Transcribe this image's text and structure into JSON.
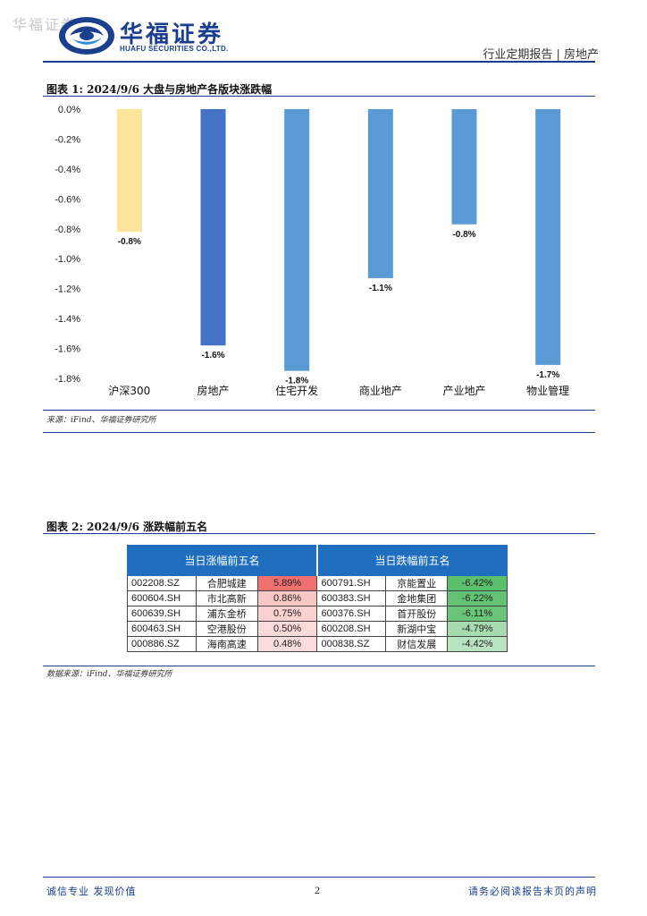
{
  "header": {
    "watermark": "华福证券",
    "logo_cn": "华福证券",
    "logo_en": "HUAFU SECURITIES CO.,LTD.",
    "report_type": "行业定期报告 | 房地产",
    "brand_color": "#1b3f8f"
  },
  "figure1": {
    "title": "图表 1:  2024/9/6 大盘与房地产各版块涨跌幅",
    "source": "来源：iFind、华福证券研究所"
  },
  "chart_data": {
    "type": "bar",
    "categories": [
      "沪深300",
      "房地产",
      "住宅开发",
      "商业地产",
      "产业地产",
      "物业管理"
    ],
    "values": [
      -0.82,
      -1.58,
      -1.75,
      -1.13,
      -0.77,
      -1.71
    ],
    "data_labels": [
      "-0.8%",
      "-1.6%",
      "-1.8%",
      "-1.1%",
      "-0.8%",
      "-1.7%"
    ],
    "colors": [
      "#fce49a",
      "#4472c4",
      "#5b9bd5",
      "#5b9bd5",
      "#5b9bd5",
      "#5b9bd5"
    ],
    "ylim": [
      -1.8,
      0.0
    ],
    "yticks": [
      "0.0%",
      "-0.2%",
      "-0.4%",
      "-0.6%",
      "-0.8%",
      "-1.0%",
      "-1.2%",
      "-1.4%",
      "-1.6%",
      "-1.8%"
    ],
    "grid": false,
    "legend": "none"
  },
  "figure2": {
    "title": "图表 2:  2024/9/6 涨跌幅前五名",
    "source": "数据来源：iFind、华福证券研究所",
    "headers": {
      "gainers": "当日涨幅前五名",
      "losers": "当日跌幅前五名"
    },
    "gainers": [
      {
        "code": "002208.SZ",
        "name": "合肥城建",
        "pct": "5.89%",
        "bg": "#f07070"
      },
      {
        "code": "600604.SH",
        "name": "市北高新",
        "pct": "0.86%",
        "bg": "#f9c6c6"
      },
      {
        "code": "600639.SH",
        "name": "浦东金桥",
        "pct": "0.75%",
        "bg": "#fad0d0"
      },
      {
        "code": "600463.SH",
        "name": "空港股份",
        "pct": "0.50%",
        "bg": "#fbdada"
      },
      {
        "code": "000886.SZ",
        "name": "海南高速",
        "pct": "0.48%",
        "bg": "#fbdcdc"
      }
    ],
    "losers": [
      {
        "code": "600791.SH",
        "name": "京能置业",
        "pct": "-6.42%",
        "bg": "#5bbf6b"
      },
      {
        "code": "600383.SH",
        "name": "金地集团",
        "pct": "-6.22%",
        "bg": "#64c373"
      },
      {
        "code": "600376.SH",
        "name": "首开股份",
        "pct": "-6.11%",
        "bg": "#6ac578"
      },
      {
        "code": "600208.SH",
        "name": "新湖中宝",
        "pct": "-4.79%",
        "bg": "#a6dcaf"
      },
      {
        "code": "000838.SZ",
        "name": "财信发展",
        "pct": "-4.42%",
        "bg": "#b7e3be"
      }
    ]
  },
  "footer": {
    "left": "诚信专业  发现价值",
    "page": "2",
    "right": "请务必阅读报告末页的声明"
  }
}
